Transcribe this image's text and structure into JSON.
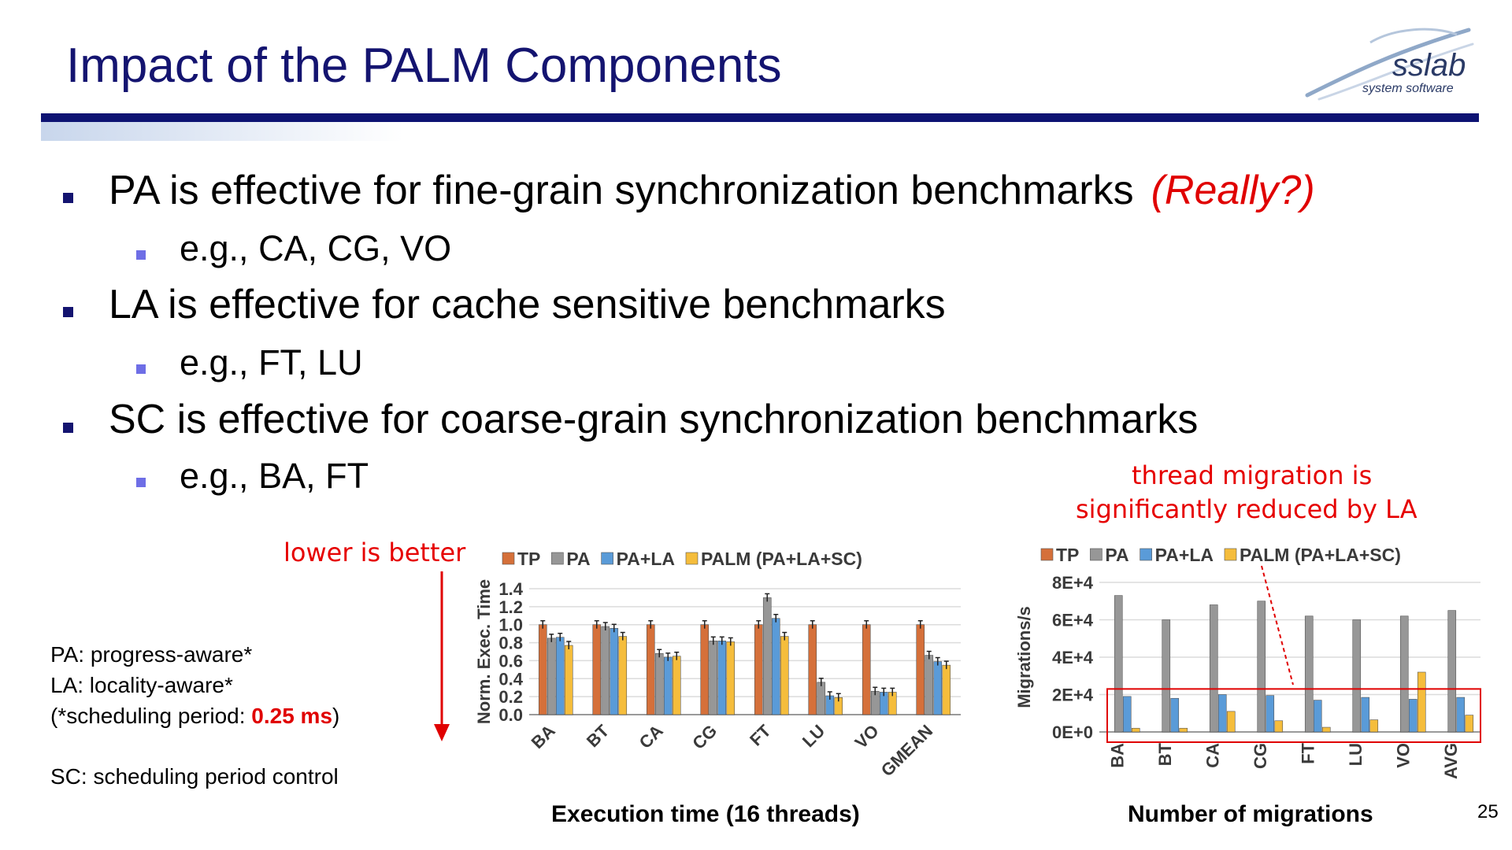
{
  "slide": {
    "title": "Impact of the PALM Components",
    "page_number": "25"
  },
  "logo": {
    "name": "sslab",
    "subtitle": "system software"
  },
  "bullets": [
    {
      "level": 1,
      "text": "PA is effective for fine-grain synchronization benchmarks",
      "emphasis": "(Really?)"
    },
    {
      "level": 2,
      "text": "e.g., CA, CG, VO"
    },
    {
      "level": 1,
      "text": "LA is effective for cache sensitive benchmarks"
    },
    {
      "level": 2,
      "text": "e.g., FT, LU"
    },
    {
      "level": 1,
      "text": "SC is effective for coarse-grain synchronization benchmarks"
    },
    {
      "level": 2,
      "text": "e.g., BA, FT"
    }
  ],
  "notes": {
    "pa": "PA: progress-aware*",
    "la": "LA: locality-aware*",
    "period_prefix": "(*scheduling period: ",
    "period_value": "0.25 ms",
    "period_suffix": ")",
    "sc": "SC: scheduling period control"
  },
  "annotations": {
    "lower_is_better": "lower is better",
    "migration_line1": "thread migration is",
    "migration_line2": "significantly reduced by LA"
  },
  "colors": {
    "TP": "#d5703a",
    "PA": "#979797",
    "PA+LA": "#5a9bd8",
    "PALM (PA+LA+SC)": "#f5bd3c",
    "annotation": "#e00000",
    "title": "#141470"
  },
  "chart_data": [
    {
      "type": "bar",
      "title": "Execution time (16 threads)",
      "ylabel": "Norm. Exec. Time",
      "ylim": [
        0,
        1.4
      ],
      "yticks": [
        "0.0",
        "0.2",
        "0.4",
        "0.6",
        "0.8",
        "1.0",
        "1.2",
        "1.4"
      ],
      "categories": [
        "BA",
        "BT",
        "CA",
        "CG",
        "FT",
        "LU",
        "VO",
        "GMEAN"
      ],
      "legend_position": "top",
      "error_bars": true,
      "series": [
        {
          "name": "TP",
          "values": [
            1.0,
            1.0,
            1.0,
            1.0,
            1.0,
            1.0,
            1.0,
            1.0
          ]
        },
        {
          "name": "PA",
          "values": [
            0.85,
            0.98,
            0.68,
            0.82,
            1.3,
            0.36,
            0.26,
            0.66
          ]
        },
        {
          "name": "PA+LA",
          "values": [
            0.86,
            0.96,
            0.64,
            0.82,
            1.07,
            0.21,
            0.25,
            0.59
          ]
        },
        {
          "name": "PALM (PA+LA+SC)",
          "values": [
            0.77,
            0.87,
            0.65,
            0.81,
            0.87,
            0.19,
            0.25,
            0.55
          ]
        }
      ]
    },
    {
      "type": "bar",
      "title": "Number of migrations",
      "ylabel": "Migrations/s",
      "ylim": [
        0,
        80000
      ],
      "yticks": [
        "0E+0",
        "2E+4",
        "4E+4",
        "6E+4",
        "8E+4"
      ],
      "categories": [
        "BA",
        "BT",
        "CA",
        "CG",
        "FT",
        "LU",
        "VO",
        "AVG"
      ],
      "legend_position": "top",
      "series": [
        {
          "name": "TP",
          "values": [
            0,
            0,
            0,
            0,
            0,
            0,
            0,
            0
          ]
        },
        {
          "name": "PA",
          "values": [
            73000,
            60000,
            68000,
            70000,
            62000,
            60000,
            62000,
            65000
          ]
        },
        {
          "name": "PA+LA",
          "values": [
            19000,
            18000,
            20000,
            19500,
            17000,
            18500,
            17500,
            18500
          ]
        },
        {
          "name": "PALM (PA+LA+SC)",
          "values": [
            2000,
            2000,
            11000,
            6000,
            2500,
            6500,
            32000,
            9000
          ]
        }
      ]
    }
  ]
}
